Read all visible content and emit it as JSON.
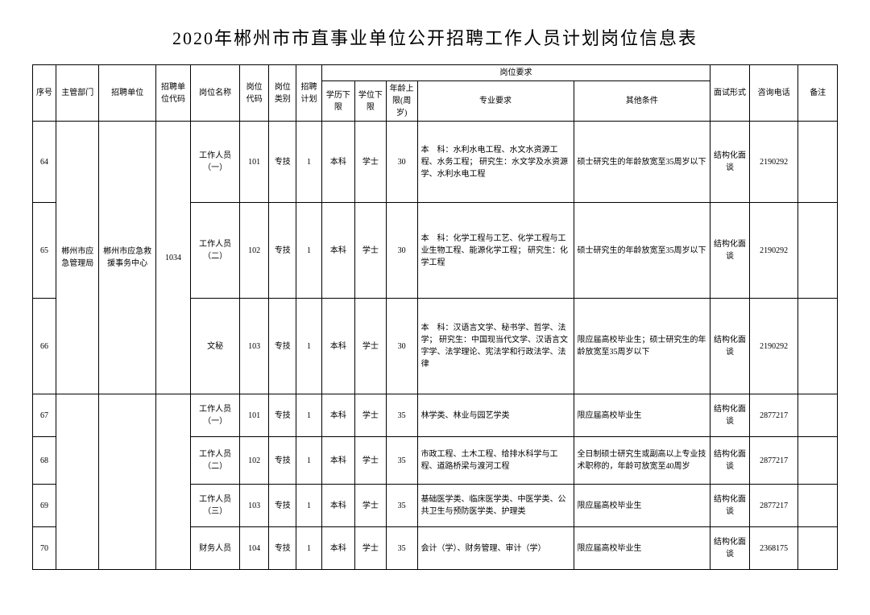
{
  "title": "2020年郴州市市直事业单位公开招聘工作人员计划岗位信息表",
  "headers": {
    "seq": "序号",
    "dept": "主管部门",
    "unit": "招聘单位",
    "unit_code": "招聘单位代码",
    "position": "岗位名称",
    "pos_code": "岗位代码",
    "pos_type": "岗位类别",
    "plan": "招聘计划",
    "req_group": "岗位要求",
    "edu": "学历下限",
    "degree": "学位下限",
    "age": "年龄上限(周岁)",
    "major": "专业要求",
    "other": "其他条件",
    "interview": "面试形式",
    "phone": "咨询电话",
    "note": "备注"
  },
  "group1": {
    "dept": "郴州市应急管理局",
    "unit": "郴州市应急救援事务中心",
    "unit_code": "1034"
  },
  "rows": [
    {
      "seq": "64",
      "position": "工作人员（一）",
      "pos_code": "101",
      "pos_type": "专技",
      "plan": "1",
      "edu": "本科",
      "degree": "学士",
      "age": "30",
      "major": "本　科：水利水电工程、水文水资源工程、水务工程；\n研究生：水文学及水资源学、水利水电工程",
      "other": "硕士研究生的年龄放宽至35周岁以下",
      "interview": "结构化面谈",
      "phone": "2190292",
      "note": ""
    },
    {
      "seq": "65",
      "position": "工作人员（二）",
      "pos_code": "102",
      "pos_type": "专技",
      "plan": "1",
      "edu": "本科",
      "degree": "学士",
      "age": "30",
      "major": "本　科：化学工程与工艺、化学工程与工业生物工程、能源化学工程；\n研究生：化学工程",
      "other": "硕士研究生的年龄放宽至35周岁以下",
      "interview": "结构化面谈",
      "phone": "2190292",
      "note": ""
    },
    {
      "seq": "66",
      "position": "文秘",
      "pos_code": "103",
      "pos_type": "专技",
      "plan": "1",
      "edu": "本科",
      "degree": "学士",
      "age": "30",
      "major": "本　科：汉语言文学、秘书学、哲学、法学；\n研究生：中国现当代文学、汉语言文字学、法学理论、宪法学和行政法学、法律",
      "other": "限应届高校毕业生；硕士研究生的年龄放宽至35周岁以下",
      "interview": "结构化面谈",
      "phone": "2190292",
      "note": ""
    },
    {
      "seq": "67",
      "position": "工作人员（一）",
      "pos_code": "101",
      "pos_type": "专技",
      "plan": "1",
      "edu": "本科",
      "degree": "学士",
      "age": "35",
      "major": "林学类、林业与园艺学类",
      "other": "限应届高校毕业生",
      "interview": "结构化面谈",
      "phone": "2877217",
      "note": ""
    },
    {
      "seq": "68",
      "position": "工作人员（二）",
      "pos_code": "102",
      "pos_type": "专技",
      "plan": "1",
      "edu": "本科",
      "degree": "学士",
      "age": "35",
      "major": "市政工程、土木工程、给排水科学与工程、道路桥梁与渡河工程",
      "other": "全日制硕士研究生或副高以上专业技术职称的，年龄可放宽至40周岁",
      "interview": "结构化面谈",
      "phone": "2877217",
      "note": ""
    },
    {
      "seq": "69",
      "position": "工作人员（三）",
      "pos_code": "103",
      "pos_type": "专技",
      "plan": "1",
      "edu": "本科",
      "degree": "学士",
      "age": "35",
      "major": "基础医学类、临床医学类、中医学类、公共卫生与预防医学类、护理类",
      "other": "限应届高校毕业生",
      "interview": "结构化面谈",
      "phone": "2877217",
      "note": ""
    },
    {
      "seq": "70",
      "position": "财务人员",
      "pos_code": "104",
      "pos_type": "专技",
      "plan": "1",
      "edu": "本科",
      "degree": "学士",
      "age": "35",
      "major": "会计（学）、财务管理、审计（学）",
      "other": "限应届高校毕业生",
      "interview": "结构化面谈",
      "phone": "2368175",
      "note": ""
    }
  ]
}
